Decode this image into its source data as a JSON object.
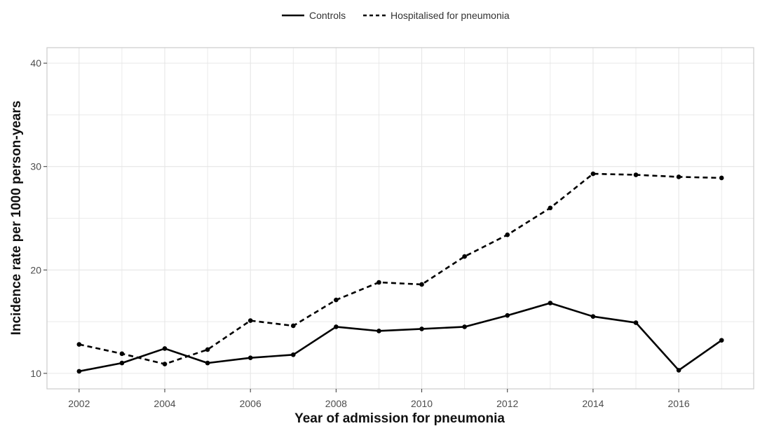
{
  "chart_data": {
    "type": "line",
    "title": "",
    "xlabel": "Year of admission for pneumonia",
    "ylabel": "Incidence rate per 1000 person-years",
    "x": [
      2002,
      2003,
      2004,
      2005,
      2006,
      2007,
      2008,
      2009,
      2010,
      2011,
      2012,
      2013,
      2014,
      2015,
      2016,
      2017
    ],
    "xticks": [
      2002,
      2004,
      2006,
      2008,
      2010,
      2012,
      2014,
      2016
    ],
    "yticks": [
      10,
      20,
      30,
      40
    ],
    "xlim": [
      2001.25,
      2017.75
    ],
    "ylim": [
      8.5,
      41.5
    ],
    "grid": true,
    "legend_position": "top",
    "series": [
      {
        "name": "Controls",
        "line_style": "solid",
        "values": [
          10.2,
          11.0,
          12.4,
          11.0,
          11.5,
          11.8,
          14.5,
          14.1,
          14.3,
          14.5,
          15.6,
          16.8,
          15.5,
          14.9,
          10.3,
          13.2
        ]
      },
      {
        "name": "Hospitalised for pneumonia",
        "line_style": "dashed",
        "values": [
          12.8,
          11.9,
          10.9,
          12.3,
          15.1,
          14.6,
          17.1,
          18.8,
          18.6,
          21.3,
          23.4,
          26.0,
          29.3,
          29.2,
          29.0,
          28.9
        ]
      }
    ],
    "colors": {
      "line": "#000000",
      "grid": "#e6e6e6",
      "panel_border": "#cccccc"
    }
  }
}
